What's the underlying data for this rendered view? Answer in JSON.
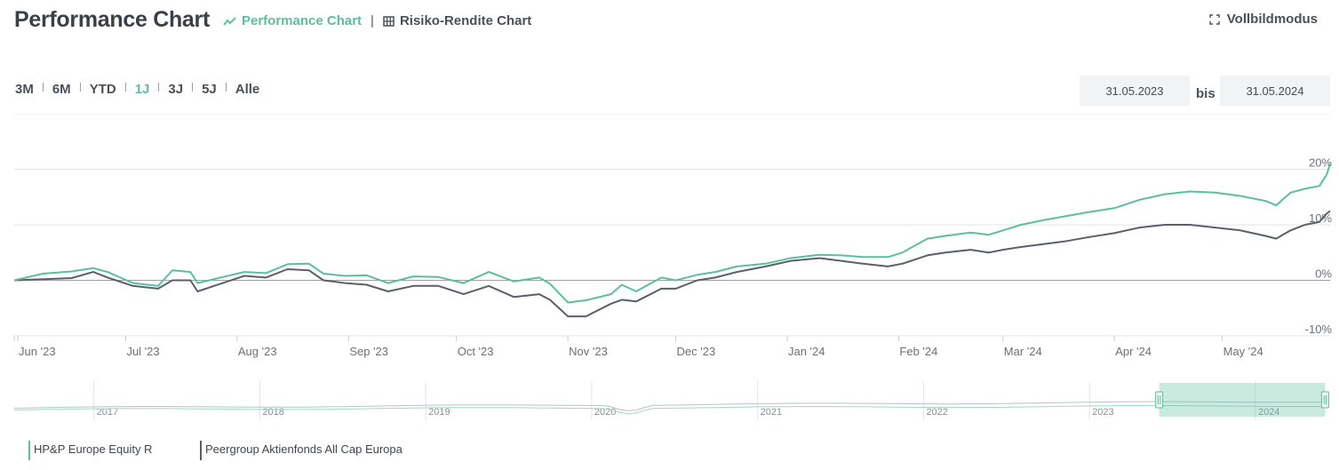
{
  "header": {
    "title": "Performance Chart",
    "tabs": [
      {
        "label": "Performance Chart",
        "active": true,
        "icon": "line-chart-icon"
      },
      {
        "label": "Risiko-Rendite Chart",
        "active": false,
        "icon": "grid-icon"
      }
    ],
    "fullscreen_label": "Vollbildmodus"
  },
  "ranges": [
    {
      "label": "3M",
      "active": false
    },
    {
      "label": "6M",
      "active": false
    },
    {
      "label": "YTD",
      "active": false
    },
    {
      "label": "1J",
      "active": true
    },
    {
      "label": "3J",
      "active": false
    },
    {
      "label": "5J",
      "active": false
    },
    {
      "label": "Alle",
      "active": false
    }
  ],
  "date_range": {
    "from": "31.05.2023",
    "separator": "bis",
    "to": "31.05.2024"
  },
  "colors": {
    "fund": "#5bbf9f",
    "peer": "#5a5f6b",
    "grid": "#e6e6e6",
    "axis_text": "#6b7079"
  },
  "chart_data": {
    "type": "line",
    "x_tick_labels": [
      "Jun '23",
      "Jul '23",
      "Aug '23",
      "Sep '23",
      "Oct '23",
      "Nov '23",
      "Dec '23",
      "Jan '24",
      "Feb '24",
      "Mar '24",
      "Apr '24",
      "May '24"
    ],
    "x_range": [
      "2023-05-31",
      "2024-05-31"
    ],
    "y_tick_labels": [
      "20%",
      "10%",
      "0%",
      "-10%"
    ],
    "y_ticks": [
      20,
      10,
      0,
      -10
    ],
    "ylim": [
      -10,
      30
    ],
    "series": [
      {
        "name": "HP&P Europe Equity R",
        "color": "#5bbf9f",
        "points": [
          [
            "2023-05-31",
            0
          ],
          [
            "2023-06-08",
            1.2
          ],
          [
            "2023-06-16",
            1.6
          ],
          [
            "2023-06-22",
            2.2
          ],
          [
            "2023-06-26",
            1.5
          ],
          [
            "2023-07-03",
            -0.5
          ],
          [
            "2023-07-10",
            -1
          ],
          [
            "2023-07-14",
            1.8
          ],
          [
            "2023-07-19",
            1.5
          ],
          [
            "2023-07-21",
            -0.5
          ],
          [
            "2023-07-28",
            0.6
          ],
          [
            "2023-08-03",
            1.5
          ],
          [
            "2023-08-09",
            1.3
          ],
          [
            "2023-08-15",
            2.9
          ],
          [
            "2023-08-21",
            3.0
          ],
          [
            "2023-08-25",
            1.2
          ],
          [
            "2023-08-31",
            0.8
          ],
          [
            "2023-09-06",
            0.9
          ],
          [
            "2023-09-12",
            -0.5
          ],
          [
            "2023-09-19",
            0.7
          ],
          [
            "2023-09-26",
            0.6
          ],
          [
            "2023-10-03",
            -0.5
          ],
          [
            "2023-10-10",
            1.5
          ],
          [
            "2023-10-17",
            -0.2
          ],
          [
            "2023-10-24",
            0.5
          ],
          [
            "2023-10-27",
            -0.6
          ],
          [
            "2023-11-01",
            -4.0
          ],
          [
            "2023-11-06",
            -3.6
          ],
          [
            "2023-11-13",
            -2.5
          ],
          [
            "2023-11-16",
            -0.8
          ],
          [
            "2023-11-20",
            -2.0
          ],
          [
            "2023-11-27",
            0.5
          ],
          [
            "2023-12-01",
            0.0
          ],
          [
            "2023-12-07",
            1.0
          ],
          [
            "2023-12-12",
            1.5
          ],
          [
            "2023-12-18",
            2.5
          ],
          [
            "2023-12-26",
            3.0
          ],
          [
            "2024-01-02",
            4.0
          ],
          [
            "2024-01-10",
            4.6
          ],
          [
            "2024-01-16",
            4.5
          ],
          [
            "2024-01-22",
            4.2
          ],
          [
            "2024-01-29",
            4.2
          ],
          [
            "2024-02-02",
            5.0
          ],
          [
            "2024-02-09",
            7.5
          ],
          [
            "2024-02-14",
            8.0
          ],
          [
            "2024-02-21",
            8.6
          ],
          [
            "2024-02-26",
            8.2
          ],
          [
            "2024-03-01",
            9.0
          ],
          [
            "2024-03-06",
            10.0
          ],
          [
            "2024-03-12",
            10.8
          ],
          [
            "2024-03-18",
            11.5
          ],
          [
            "2024-03-25",
            12.3
          ],
          [
            "2024-04-01",
            13.0
          ],
          [
            "2024-04-08",
            14.5
          ],
          [
            "2024-04-15",
            15.5
          ],
          [
            "2024-04-22",
            16.0
          ],
          [
            "2024-04-29",
            15.8
          ],
          [
            "2024-05-06",
            15.2
          ],
          [
            "2024-05-13",
            14.3
          ],
          [
            "2024-05-16",
            13.5
          ],
          [
            "2024-05-20",
            15.8
          ],
          [
            "2024-05-24",
            16.5
          ],
          [
            "2024-05-28",
            17.0
          ],
          [
            "2024-05-30",
            19.0
          ],
          [
            "2024-05-31",
            21.0
          ]
        ]
      },
      {
        "name": "Peergroup Aktienfonds All Cap Europa",
        "color": "#5a5f6b",
        "points": [
          [
            "2023-05-31",
            0
          ],
          [
            "2023-06-08",
            0.2
          ],
          [
            "2023-06-16",
            0.4
          ],
          [
            "2023-06-22",
            1.5
          ],
          [
            "2023-06-26",
            0.5
          ],
          [
            "2023-07-03",
            -1.0
          ],
          [
            "2023-07-10",
            -1.5
          ],
          [
            "2023-07-14",
            0.0
          ],
          [
            "2023-07-19",
            0.0
          ],
          [
            "2023-07-21",
            -2.0
          ],
          [
            "2023-07-28",
            -0.5
          ],
          [
            "2023-08-03",
            0.8
          ],
          [
            "2023-08-09",
            0.5
          ],
          [
            "2023-08-15",
            2.0
          ],
          [
            "2023-08-21",
            1.8
          ],
          [
            "2023-08-25",
            0.0
          ],
          [
            "2023-08-31",
            -0.5
          ],
          [
            "2023-09-06",
            -0.8
          ],
          [
            "2023-09-12",
            -2.0
          ],
          [
            "2023-09-19",
            -1.0
          ],
          [
            "2023-09-26",
            -1.0
          ],
          [
            "2023-10-03",
            -2.5
          ],
          [
            "2023-10-10",
            -1.0
          ],
          [
            "2023-10-17",
            -3.0
          ],
          [
            "2023-10-24",
            -2.5
          ],
          [
            "2023-10-27",
            -3.5
          ],
          [
            "2023-11-01",
            -6.5
          ],
          [
            "2023-11-06",
            -6.5
          ],
          [
            "2023-11-13",
            -4.2
          ],
          [
            "2023-11-16",
            -3.5
          ],
          [
            "2023-11-20",
            -3.8
          ],
          [
            "2023-11-27",
            -1.5
          ],
          [
            "2023-12-01",
            -1.5
          ],
          [
            "2023-12-07",
            0.0
          ],
          [
            "2023-12-12",
            0.5
          ],
          [
            "2023-12-18",
            1.5
          ],
          [
            "2023-12-26",
            2.5
          ],
          [
            "2024-01-02",
            3.5
          ],
          [
            "2024-01-10",
            4.0
          ],
          [
            "2024-01-16",
            3.5
          ],
          [
            "2024-01-22",
            3.0
          ],
          [
            "2024-01-29",
            2.5
          ],
          [
            "2024-02-02",
            3.0
          ],
          [
            "2024-02-09",
            4.5
          ],
          [
            "2024-02-14",
            5.0
          ],
          [
            "2024-02-21",
            5.5
          ],
          [
            "2024-02-26",
            5.0
          ],
          [
            "2024-03-01",
            5.5
          ],
          [
            "2024-03-06",
            6.0
          ],
          [
            "2024-03-12",
            6.5
          ],
          [
            "2024-03-18",
            7.0
          ],
          [
            "2024-03-25",
            7.8
          ],
          [
            "2024-04-01",
            8.5
          ],
          [
            "2024-04-08",
            9.5
          ],
          [
            "2024-04-15",
            10.0
          ],
          [
            "2024-04-22",
            10.0
          ],
          [
            "2024-04-29",
            9.5
          ],
          [
            "2024-05-06",
            9.0
          ],
          [
            "2024-05-13",
            8.0
          ],
          [
            "2024-05-16",
            7.5
          ],
          [
            "2024-05-20",
            9.0
          ],
          [
            "2024-05-24",
            10.0
          ],
          [
            "2024-05-28",
            10.5
          ],
          [
            "2024-05-30",
            12.0
          ],
          [
            "2024-05-31",
            12.5
          ]
        ]
      }
    ],
    "navigator": {
      "year_labels": [
        "2017",
        "2018",
        "2019",
        "2020",
        "2021",
        "2022",
        "2023",
        "2024"
      ],
      "years": [
        2017,
        2018,
        2019,
        2020,
        2021,
        2022,
        2023,
        2024
      ],
      "x_range": [
        2016.52,
        2024.45
      ],
      "selected_range": [
        2023.42,
        2024.42
      ],
      "grid": true,
      "legend_placement": "bottom-left"
    }
  }
}
